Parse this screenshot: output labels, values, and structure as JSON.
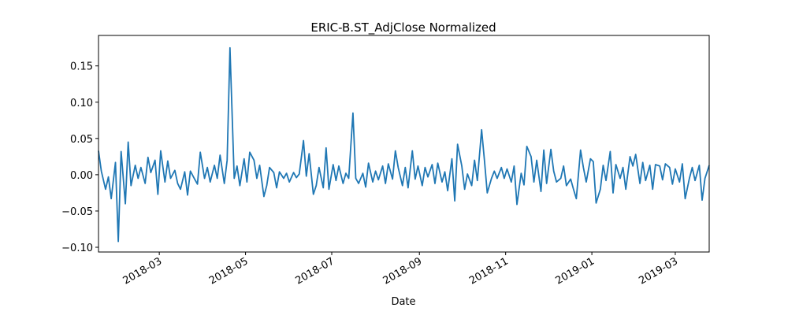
{
  "chart_data": {
    "type": "line",
    "title": "ERIC-B.ST_AdjClose Normalized",
    "xlabel": "Date",
    "color": "#1f77b4",
    "xlim": [
      "2018-01-17",
      "2019-03-25"
    ],
    "xticks": [
      {
        "value": "2018-03-01",
        "label": "2018-03"
      },
      {
        "value": "2018-05-01",
        "label": "2018-05"
      },
      {
        "value": "2018-07-01",
        "label": "2018-07"
      },
      {
        "value": "2018-09-01",
        "label": "2018-09"
      },
      {
        "value": "2018-11-01",
        "label": "2018-11"
      },
      {
        "value": "2019-01-01",
        "label": "2019-01"
      },
      {
        "value": "2019-03-01",
        "label": "2019-03"
      }
    ],
    "ylim": [
      -0.1065,
      0.192
    ],
    "yticks": [
      {
        "value": -0.1,
        "label": "−0.10"
      },
      {
        "value": -0.05,
        "label": "−0.05"
      },
      {
        "value": 0,
        "label": "0.00"
      },
      {
        "value": 0.05,
        "label": "0.05"
      },
      {
        "value": 0.1,
        "label": "0.10"
      },
      {
        "value": 0.15,
        "label": "0.15"
      }
    ],
    "x": [
      "2018-01-17",
      "2018-01-19",
      "2018-01-22",
      "2018-01-24",
      "2018-01-26",
      "2018-01-29",
      "2018-01-31",
      "2018-02-02",
      "2018-02-05",
      "2018-02-07",
      "2018-02-09",
      "2018-02-12",
      "2018-02-14",
      "2018-02-16",
      "2018-02-19",
      "2018-02-21",
      "2018-02-23",
      "2018-02-26",
      "2018-02-28",
      "2018-03-02",
      "2018-03-05",
      "2018-03-07",
      "2018-03-09",
      "2018-03-12",
      "2018-03-14",
      "2018-03-16",
      "2018-03-19",
      "2018-03-21",
      "2018-03-23",
      "2018-03-26",
      "2018-03-28",
      "2018-03-30",
      "2018-04-02",
      "2018-04-04",
      "2018-04-06",
      "2018-04-09",
      "2018-04-11",
      "2018-04-13",
      "2018-04-16",
      "2018-04-18",
      "2018-04-20",
      "2018-04-23",
      "2018-04-25",
      "2018-04-27",
      "2018-04-30",
      "2018-05-02",
      "2018-05-04",
      "2018-05-07",
      "2018-05-09",
      "2018-05-11",
      "2018-05-14",
      "2018-05-16",
      "2018-05-18",
      "2018-05-21",
      "2018-05-23",
      "2018-05-25",
      "2018-05-28",
      "2018-05-30",
      "2018-06-01",
      "2018-06-04",
      "2018-06-06",
      "2018-06-08",
      "2018-06-11",
      "2018-06-13",
      "2018-06-15",
      "2018-06-18",
      "2018-06-20",
      "2018-06-22",
      "2018-06-25",
      "2018-06-27",
      "2018-06-29",
      "2018-07-02",
      "2018-07-04",
      "2018-07-06",
      "2018-07-09",
      "2018-07-11",
      "2018-07-13",
      "2018-07-16",
      "2018-07-18",
      "2018-07-20",
      "2018-07-23",
      "2018-07-25",
      "2018-07-27",
      "2018-07-30",
      "2018-08-01",
      "2018-08-03",
      "2018-08-06",
      "2018-08-08",
      "2018-08-10",
      "2018-08-13",
      "2018-08-15",
      "2018-08-17",
      "2018-08-20",
      "2018-08-22",
      "2018-08-24",
      "2018-08-27",
      "2018-08-29",
      "2018-08-31",
      "2018-09-03",
      "2018-09-05",
      "2018-09-07",
      "2018-09-10",
      "2018-09-12",
      "2018-09-14",
      "2018-09-17",
      "2018-09-19",
      "2018-09-21",
      "2018-09-24",
      "2018-09-26",
      "2018-09-28",
      "2018-10-01",
      "2018-10-03",
      "2018-10-05",
      "2018-10-08",
      "2018-10-10",
      "2018-10-12",
      "2018-10-15",
      "2018-10-17",
      "2018-10-19",
      "2018-10-22",
      "2018-10-24",
      "2018-10-26",
      "2018-10-29",
      "2018-10-31",
      "2018-11-02",
      "2018-11-05",
      "2018-11-07",
      "2018-11-09",
      "2018-11-12",
      "2018-11-14",
      "2018-11-16",
      "2018-11-19",
      "2018-11-21",
      "2018-11-23",
      "2018-11-26",
      "2018-11-28",
      "2018-11-30",
      "2018-12-03",
      "2018-12-05",
      "2018-12-07",
      "2018-12-10",
      "2018-12-12",
      "2018-12-14",
      "2018-12-17",
      "2018-12-19",
      "2018-12-21",
      "2018-12-24",
      "2018-12-26",
      "2018-12-28",
      "2018-12-31",
      "2019-01-02",
      "2019-01-04",
      "2019-01-07",
      "2019-01-09",
      "2019-01-11",
      "2019-01-14",
      "2019-01-16",
      "2019-01-18",
      "2019-01-21",
      "2019-01-23",
      "2019-01-25",
      "2019-01-28",
      "2019-01-30",
      "2019-02-01",
      "2019-02-04",
      "2019-02-06",
      "2019-02-08",
      "2019-02-11",
      "2019-02-13",
      "2019-02-15",
      "2019-02-18",
      "2019-02-20",
      "2019-02-22",
      "2019-02-25",
      "2019-02-27",
      "2019-03-01",
      "2019-03-04",
      "2019-03-06",
      "2019-03-08",
      "2019-03-11",
      "2019-03-13",
      "2019-03-15",
      "2019-03-18",
      "2019-03-20",
      "2019-03-22",
      "2019-03-25"
    ],
    "values": [
      0.033,
      0.005,
      -0.02,
      -0.003,
      -0.033,
      0.017,
      -0.092,
      0.032,
      -0.04,
      0.045,
      -0.015,
      0.013,
      -0.005,
      0.01,
      -0.012,
      0.024,
      0.003,
      0.02,
      -0.027,
      0.033,
      -0.01,
      0.019,
      -0.005,
      0.006,
      -0.012,
      -0.02,
      0.004,
      -0.028,
      0.005,
      -0.006,
      -0.013,
      0.031,
      -0.005,
      0.01,
      -0.01,
      0.013,
      -0.005,
      0.027,
      -0.012,
      0.02,
      0.175,
      -0.005,
      0.012,
      -0.015,
      0.022,
      -0.01,
      0.031,
      0.02,
      -0.005,
      0.013,
      -0.03,
      -0.015,
      0.01,
      0.003,
      -0.018,
      0.004,
      -0.005,
      0.002,
      -0.01,
      0.003,
      -0.004,
      0.001,
      0.047,
      -0.002,
      0.029,
      -0.027,
      -0.015,
      0.01,
      -0.018,
      0.037,
      -0.02,
      0.014,
      -0.008,
      0.012,
      -0.012,
      0.002,
      -0.005,
      0.085,
      -0.005,
      -0.012,
      0.002,
      -0.017,
      0.016,
      -0.01,
      0.005,
      -0.007,
      0.012,
      -0.012,
      0.015,
      -0.006,
      0.033,
      0.01,
      -0.015,
      0.01,
      -0.018,
      0.033,
      -0.006,
      0.012,
      -0.015,
      0.01,
      -0.003,
      0.014,
      -0.012,
      0.016,
      -0.01,
      0.004,
      -0.022,
      0.022,
      -0.036,
      0.042,
      0.012,
      -0.02,
      0.001,
      -0.015,
      0.02,
      -0.008,
      0.062,
      0.02,
      -0.025,
      -0.005,
      0.005,
      -0.005,
      0.01,
      -0.005,
      0.008,
      -0.01,
      0.012,
      -0.041,
      0.002,
      -0.014,
      0.039,
      0.025,
      -0.01,
      0.02,
      -0.023,
      0.034,
      -0.012,
      0.035,
      0.005,
      -0.01,
      -0.005,
      0.012,
      -0.015,
      -0.006,
      -0.02,
      -0.033,
      0.034,
      0.01,
      -0.01,
      0.022,
      0.018,
      -0.039,
      -0.02,
      0.013,
      -0.008,
      0.032,
      -0.025,
      0.014,
      -0.005,
      0.01,
      -0.02,
      0.025,
      0.012,
      0.028,
      -0.012,
      0.017,
      -0.008,
      0.013,
      -0.02,
      0.014,
      0.012,
      -0.007,
      0.015,
      0.01,
      -0.013,
      0.008,
      -0.01,
      0.015,
      -0.033,
      -0.005,
      0.01,
      -0.008,
      0.013,
      -0.035,
      -0.005,
      0.013
    ]
  }
}
